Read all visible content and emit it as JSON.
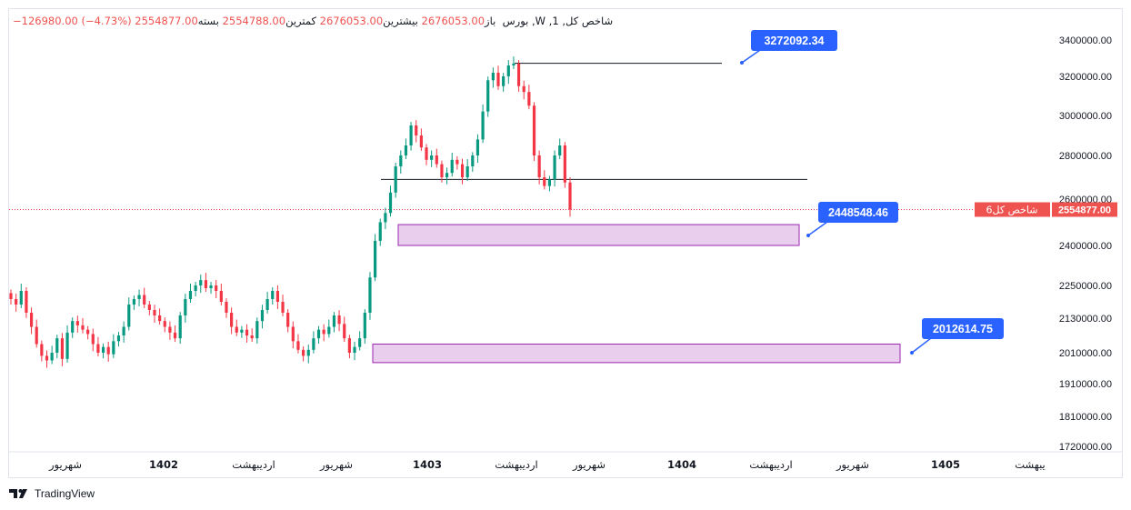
{
  "header": {
    "index_name": "شاخص کل, 1",
    "market": "بورس",
    "timeframe": "W",
    "open_label": "باز",
    "open_value": "2676053.00",
    "high_label": "بیشترین",
    "high_value": "2676053.00",
    "low_label": "کمترین",
    "low_value": "2554788.00",
    "close_label": "بسته",
    "close_value": "2554877.00",
    "change_value": "−126980.00 (−4.73%)"
  },
  "price_tag": {
    "symbol_label": "شاخص کل6",
    "value": "2554877.00",
    "color": "#ef5350"
  },
  "callouts": [
    {
      "label": "3272092.34"
    },
    {
      "label": "2448548.46"
    },
    {
      "label": "2012614.75"
    }
  ],
  "branding": {
    "name": "TradingView"
  },
  "colors": {
    "up": "#089981",
    "down": "#f23645",
    "zone_fill": "#e1bee7",
    "zone_stroke": "#9c27b0",
    "callout": "#2962ff"
  },
  "chart_data": {
    "type": "candlestick",
    "y_axis_ticks": [
      "3400000.00",
      "3200000.00",
      "3000000.00",
      "2800000.00",
      "2600000.00",
      "2400000.00",
      "2250000.00",
      "2130000.00",
      "2010000.00",
      "1910000.00",
      "1810000.00",
      "1720000.00"
    ],
    "x_axis_ticks": [
      "شهریور",
      "1402",
      "اردیبهشت",
      "شهریور",
      "1403",
      "اردیبهشت",
      "شهریور",
      "1404",
      "اردیبهشت",
      "شهریور",
      "1405",
      "یبهشت"
    ],
    "last_close": 2554877.0,
    "horizontal_lines": [
      3272092.34,
      2690000
    ],
    "zones": [
      {
        "top": 2490000,
        "bottom": 2400000,
        "label": "2448548.46"
      },
      {
        "top": 2040000,
        "bottom": 1978000,
        "label": "2012614.75"
      }
    ],
    "approx_closes": [
      2200000,
      2180000,
      2230000,
      2150000,
      2100000,
      2040000,
      2000000,
      1985000,
      2010000,
      2060000,
      1990000,
      2080000,
      2120000,
      2105000,
      2090000,
      2075000,
      2040000,
      2010000,
      2030000,
      2005000,
      2050000,
      2070000,
      2100000,
      2180000,
      2200000,
      2215000,
      2180000,
      2160000,
      2140000,
      2120000,
      2100000,
      2080000,
      2060000,
      2140000,
      2200000,
      2230000,
      2250000,
      2270000,
      2240000,
      2250000,
      2230000,
      2190000,
      2150000,
      2100000,
      2080000,
      2090000,
      2070000,
      2060000,
      2120000,
      2160000,
      2200000,
      2230000,
      2190000,
      2150000,
      2100000,
      2050000,
      2020000,
      2000000,
      2020000,
      2060000,
      2090000,
      2075000,
      2100000,
      2140000,
      2110000,
      2060000,
      2010000,
      2030000,
      2060000,
      2150000,
      2280000,
      2420000,
      2500000,
      2540000,
      2630000,
      2750000,
      2800000,
      2850000,
      2950000,
      2900000,
      2840000,
      2780000,
      2800000,
      2760000,
      2700000,
      2720000,
      2780000,
      2760000,
      2700000,
      2750000,
      2800000,
      2880000,
      3020000,
      3180000,
      3220000,
      3150000,
      3200000,
      3260000,
      3270000,
      3150000,
      3120000,
      3050000,
      2800000,
      2700000,
      2660000,
      2690000,
      2800000,
      2850000,
      2676053,
      2554877
    ]
  }
}
